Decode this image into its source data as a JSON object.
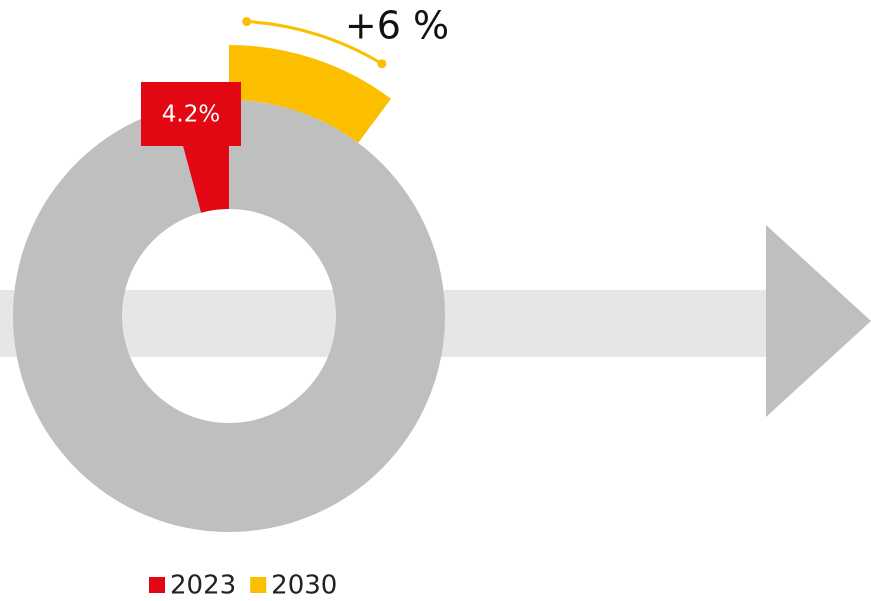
{
  "chart_data": {
    "type": "donut",
    "annotation": "+6 %",
    "series": [
      {
        "name": "2023",
        "color": "#e30613",
        "values": [
          4.2
        ],
        "value_labels": [
          "4.2%"
        ]
      },
      {
        "name": "2030",
        "color": "#fcbf00",
        "values": [
          10.2
        ]
      }
    ],
    "rest_color": "#bfbfbf",
    "legend": "bottom"
  }
}
